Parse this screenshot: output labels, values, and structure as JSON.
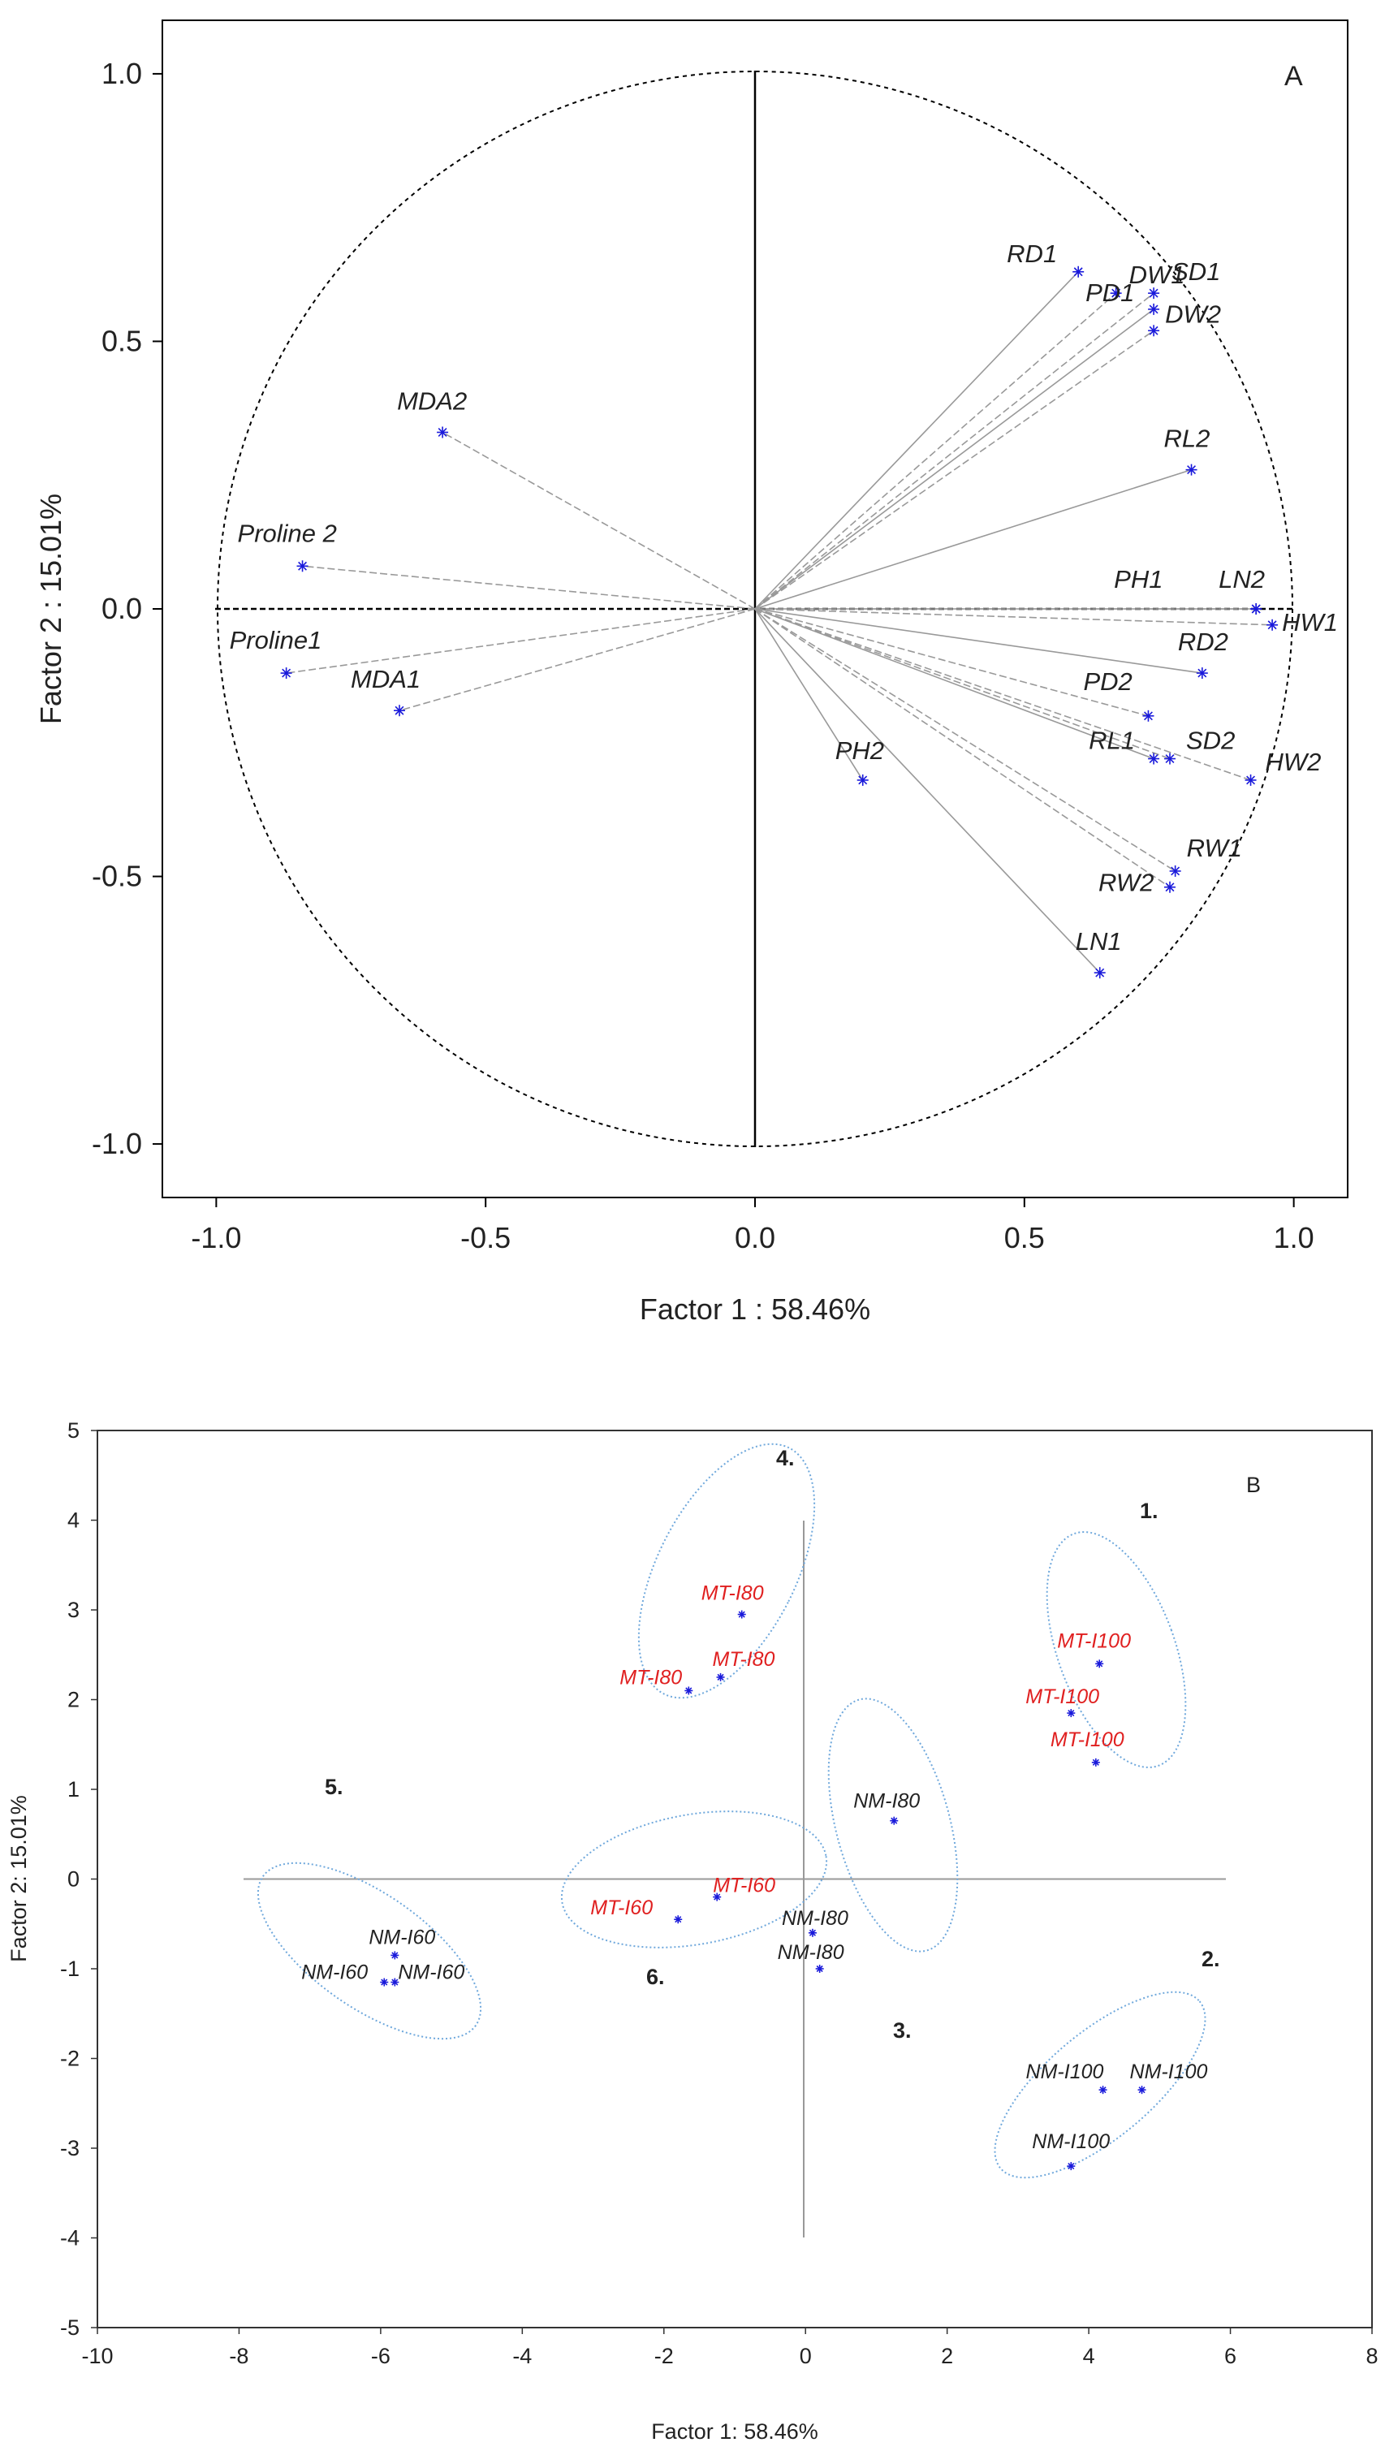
{
  "chart_data": [
    {
      "type": "scatter",
      "panel": "A",
      "title": "A",
      "xlabel": "Factor 1 : 58.46%",
      "ylabel": "Factor 2 : 15.01%",
      "xlim": [
        -1.1,
        1.1
      ],
      "ylim": [
        -1.1,
        1.1
      ],
      "xticks": [
        "-1.0",
        "-0.5",
        "0.0",
        "0.5",
        "1.0"
      ],
      "yticks": [
        "1.0",
        "0.5",
        "0.0",
        "-0.5",
        "-1.0"
      ],
      "marker_color": "#1a1adb",
      "line_color": "#999999",
      "points": [
        {
          "label": "RD1",
          "x": 0.6,
          "y": 0.63
        },
        {
          "label": "DW1",
          "x": 0.67,
          "y": 0.59
        },
        {
          "label": "SD1",
          "x": 0.74,
          "y": 0.59
        },
        {
          "label": "PD1",
          "x": 0.74,
          "y": 0.56
        },
        {
          "label": "DW2",
          "x": 0.74,
          "y": 0.52
        },
        {
          "label": "MDA2",
          "x": -0.58,
          "y": 0.33
        },
        {
          "label": "RL2",
          "x": 0.81,
          "y": 0.26
        },
        {
          "label": "Proline 2",
          "x": -0.84,
          "y": 0.08
        },
        {
          "label": "PH1",
          "x": 0.93,
          "y": 0.0
        },
        {
          "label": "LN2",
          "x": 0.93,
          "y": 0.0
        },
        {
          "label": "HW1",
          "x": 0.96,
          "y": -0.03
        },
        {
          "label": "Proline1",
          "x": -0.87,
          "y": -0.12
        },
        {
          "label": "RD2",
          "x": 0.83,
          "y": -0.12
        },
        {
          "label": "MDA1",
          "x": -0.66,
          "y": -0.19
        },
        {
          "label": "PD2",
          "x": 0.73,
          "y": -0.2
        },
        {
          "label": "RL1",
          "x": 0.74,
          "y": -0.28
        },
        {
          "label": "SD2",
          "x": 0.77,
          "y": -0.28
        },
        {
          "label": "HW2",
          "x": 0.92,
          "y": -0.32
        },
        {
          "label": "PH2",
          "x": 0.2,
          "y": -0.32
        },
        {
          "label": "RW1",
          "x": 0.78,
          "y": -0.49
        },
        {
          "label": "RW2",
          "x": 0.77,
          "y": -0.52
        },
        {
          "label": "LN1",
          "x": 0.64,
          "y": -0.68
        }
      ]
    },
    {
      "type": "scatter",
      "panel": "B",
      "title": "B",
      "xlabel": "Factor 1: 58.46%",
      "ylabel": "Factor 2: 15.01%",
      "xlim": [
        -10,
        8
      ],
      "ylim": [
        -5,
        5
      ],
      "xticks": [
        "-10",
        "-8",
        "-6",
        "-4",
        "-2",
        "0",
        "2",
        "4",
        "6",
        "8"
      ],
      "yticks": [
        "5",
        "4",
        "3",
        "2",
        "1",
        "0",
        "-1",
        "-2",
        "-3",
        "-4",
        "-5"
      ],
      "ellipse_color": "#6fa8dc",
      "red_label_color": "#e02020",
      "dark_label_color": "#222222",
      "points": [
        {
          "label": "MT-I80",
          "x": -0.9,
          "y": 2.95,
          "group": "MT"
        },
        {
          "label": "MT-I80",
          "x": -1.2,
          "y": 2.25,
          "group": "MT"
        },
        {
          "label": "MT-I80",
          "x": -1.65,
          "y": 2.1,
          "group": "MT"
        },
        {
          "label": "MT-I100",
          "x": 4.15,
          "y": 2.4,
          "group": "MT"
        },
        {
          "label": "MT-I100",
          "x": 3.75,
          "y": 1.85,
          "group": "MT"
        },
        {
          "label": "MT-I100",
          "x": 4.1,
          "y": 1.3,
          "group": "MT"
        },
        {
          "label": "NM-I80",
          "x": 1.25,
          "y": 0.65,
          "group": "NM"
        },
        {
          "label": "MT-I60",
          "x": -1.25,
          "y": -0.2,
          "group": "MT"
        },
        {
          "label": "MT-I60",
          "x": -1.8,
          "y": -0.45,
          "group": "MT"
        },
        {
          "label": "NM-I80",
          "x": 0.1,
          "y": -0.6,
          "group": "NM"
        },
        {
          "label": "NM-I80",
          "x": 0.2,
          "y": -1.0,
          "group": "NM"
        },
        {
          "label": "NM-I60",
          "x": -5.8,
          "y": -0.85,
          "group": "NM"
        },
        {
          "label": "NM-I60",
          "x": -5.95,
          "y": -1.15,
          "group": "NM"
        },
        {
          "label": "NM-I60",
          "x": -5.8,
          "y": -1.15,
          "group": "NM"
        },
        {
          "label": "NM-I100",
          "x": 4.2,
          "y": -2.35,
          "group": "NM"
        },
        {
          "label": "NM-I100",
          "x": 4.75,
          "y": -2.35,
          "group": "NM"
        },
        {
          "label": "NM-I100",
          "x": 3.75,
          "y": -3.2,
          "group": "NM"
        }
      ],
      "group_labels": [
        "1.",
        "2.",
        "3.",
        "4.",
        "5.",
        "6."
      ]
    }
  ]
}
